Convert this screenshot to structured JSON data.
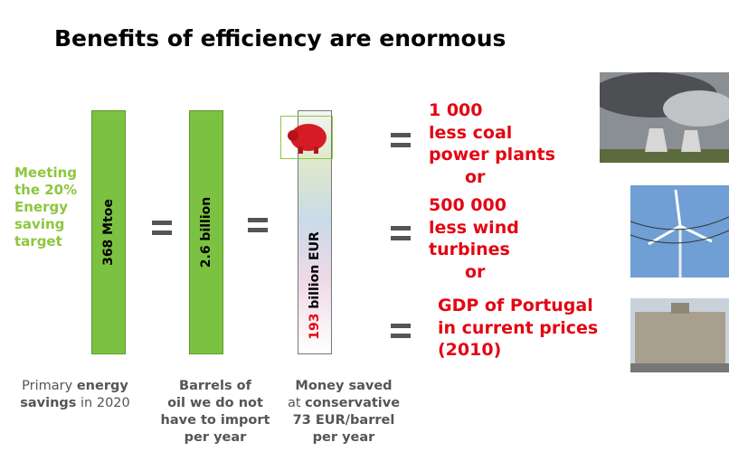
{
  "title": "Benefits of efficiency are enormous",
  "target_label": [
    "Meeting",
    "the 20%",
    "Energy",
    "saving",
    "target"
  ],
  "bars": [
    {
      "label": "368 Mtoe"
    },
    {
      "label": "2.6 billion"
    },
    {
      "label_number": "193",
      "label": "billion EUR"
    }
  ],
  "captions": [
    [
      [
        "Primary",
        "energy"
      ],
      [
        "savings",
        "in 2020"
      ]
    ],
    [
      [
        "Barrels of"
      ],
      [
        "oil we do not"
      ],
      [
        "have to import"
      ],
      [
        "per year"
      ]
    ],
    [
      [
        "Money saved"
      ],
      [
        "at",
        "conservative"
      ],
      [
        "73 EUR/barrel"
      ],
      [
        "per year"
      ]
    ]
  ],
  "results": [
    [
      "1 000",
      "less coal",
      "power plants",
      "or"
    ],
    [
      "500 000",
      "less wind",
      "turbines",
      "or"
    ],
    [
      "GDP of Portugal",
      "in current prices",
      "(2010)"
    ]
  ]
}
